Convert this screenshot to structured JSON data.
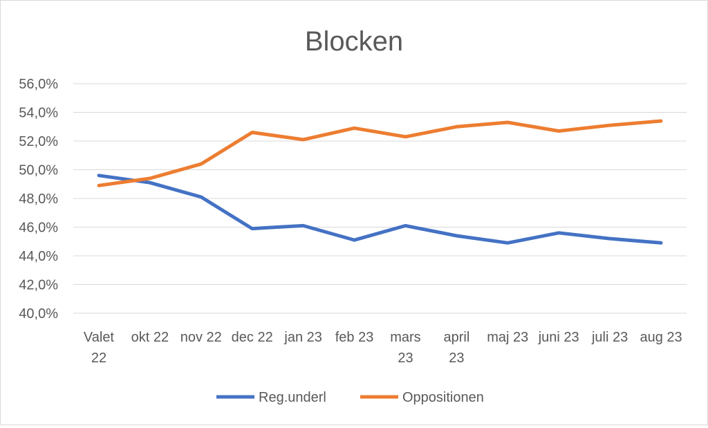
{
  "chart_data": {
    "type": "line",
    "title": "Blocken",
    "xlabel": "",
    "ylabel": "",
    "categories": [
      [
        "Valet",
        "22"
      ],
      [
        "okt 22"
      ],
      [
        "nov 22"
      ],
      [
        "dec 22"
      ],
      [
        "jan 23"
      ],
      [
        "feb 23"
      ],
      [
        "mars",
        "23"
      ],
      [
        "april",
        "23"
      ],
      [
        "maj 23"
      ],
      [
        "juni 23"
      ],
      [
        "juli 23"
      ],
      [
        "aug 23"
      ]
    ],
    "ylim": [
      40,
      56
    ],
    "yticks": [
      "40,0%",
      "42,0%",
      "44,0%",
      "46,0%",
      "48,0%",
      "50,0%",
      "52,0%",
      "54,0%",
      "56,0%"
    ],
    "grid": true,
    "legend_position": "bottom",
    "series": [
      {
        "name": "Reg.underl",
        "color": "#4472C4",
        "values": [
          49.6,
          49.1,
          48.1,
          45.9,
          46.1,
          45.1,
          46.1,
          45.4,
          44.9,
          45.6,
          45.2,
          44.9
        ]
      },
      {
        "name": "Oppositionen",
        "color": "#ED7D31",
        "values": [
          48.9,
          49.4,
          50.4,
          52.6,
          52.1,
          52.9,
          52.3,
          53.0,
          53.3,
          52.7,
          53.1,
          53.4
        ]
      }
    ]
  }
}
